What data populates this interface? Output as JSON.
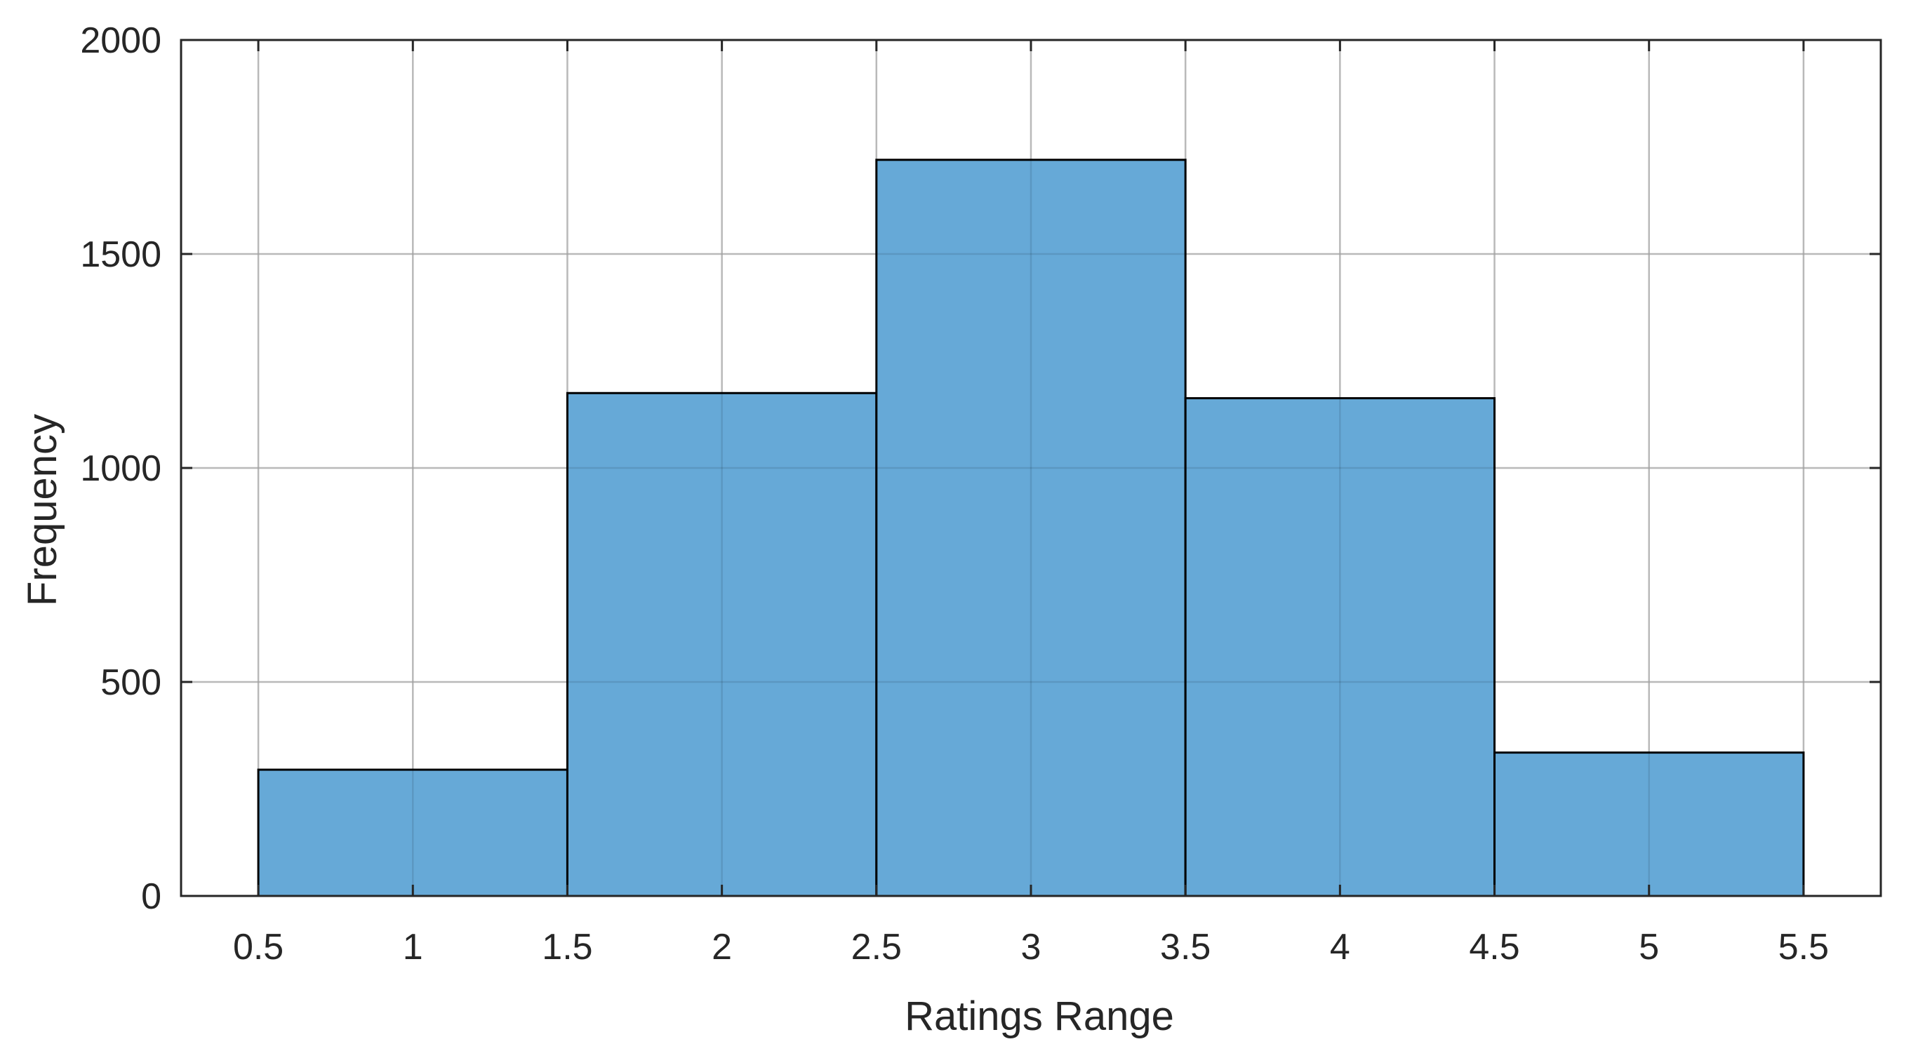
{
  "chart_data": {
    "type": "bar",
    "title": "",
    "xlabel": "Ratings Range",
    "ylabel": "Frequency",
    "bin_edges": [
      0.5,
      1.5,
      2.5,
      3.5,
      4.5,
      5.5
    ],
    "values": [
      295,
      1175,
      1720,
      1163,
      335
    ],
    "xlim": [
      0.25,
      5.75
    ],
    "ylim": [
      0,
      2000
    ],
    "xticks": [
      0.5,
      1,
      1.5,
      2,
      2.5,
      3,
      3.5,
      4,
      4.5,
      5,
      5.5
    ],
    "xtick_labels": [
      "0.5",
      "1",
      "1.5",
      "2",
      "2.5",
      "3",
      "3.5",
      "4",
      "4.5",
      "5",
      "5.5"
    ],
    "yticks": [
      0,
      500,
      1000,
      1500,
      2000
    ],
    "ytick_labels": [
      "0",
      "500",
      "1000",
      "1500",
      "2000"
    ],
    "grid": true,
    "bar_color": "#66a9d7",
    "bar_edge_color": "#000000"
  }
}
